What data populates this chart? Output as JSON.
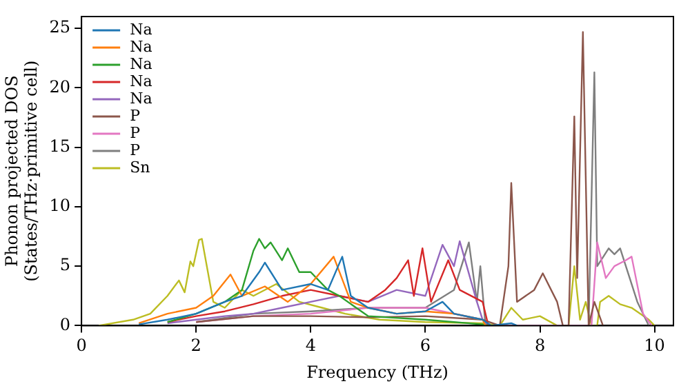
{
  "chart_data": {
    "type": "line",
    "xlabel": "Frequency (THz)",
    "ylabel": "Phonon projected DOS\n(States/THz·primitive cell)",
    "xlim": [
      0,
      10.33
    ],
    "ylim": [
      0,
      26
    ],
    "xticks": [
      0,
      2,
      4,
      6,
      8,
      10
    ],
    "yticks": [
      0,
      5,
      10,
      15,
      20,
      25
    ],
    "grid": false,
    "legend": "top left",
    "marker": "none",
    "line_style": "solid",
    "series": [
      {
        "name": "Na",
        "color": "#1f77b4",
        "x": [
          1,
          1.5,
          2,
          2.5,
          2.8,
          3.1,
          3.2,
          3.5,
          4,
          4.3,
          4.55,
          4.7,
          5,
          5.5,
          6,
          6.3,
          6.5,
          7,
          7.15,
          7.5,
          7.6
        ],
        "values": [
          0.1,
          0.5,
          1,
          2,
          2.5,
          4.5,
          5.3,
          3,
          3.5,
          3,
          5.8,
          2.5,
          1.5,
          1,
          1.2,
          2,
          1,
          0.5,
          0,
          0.2,
          0
        ]
      },
      {
        "name": "Na",
        "color": "#ff7f0e",
        "x": [
          1,
          1.5,
          2,
          2.3,
          2.6,
          2.8,
          3.2,
          3.6,
          4,
          4.4,
          4.7,
          5,
          5.5,
          6,
          6.5,
          7,
          7.05
        ],
        "values": [
          0.2,
          1,
          1.5,
          2.5,
          4.3,
          2.5,
          3.3,
          2,
          3.5,
          5.8,
          2,
          1.5,
          1,
          1.2,
          1,
          0.5,
          0
        ]
      },
      {
        "name": "Na",
        "color": "#2ca02c",
        "x": [
          1.5,
          2,
          2.5,
          2.8,
          3,
          3.1,
          3.2,
          3.3,
          3.5,
          3.6,
          3.8,
          4,
          4.3,
          4.5,
          5,
          6,
          7,
          7.1
        ],
        "values": [
          0.3,
          1,
          2,
          3,
          6.3,
          7.3,
          6.5,
          7,
          5.5,
          6.5,
          4.5,
          4.5,
          3,
          2.5,
          0.8,
          0.5,
          0.1,
          0
        ]
      },
      {
        "name": "Na",
        "color": "#d62728",
        "x": [
          1.5,
          2,
          2.5,
          3,
          3.5,
          4,
          4.5,
          5,
          5.3,
          5.5,
          5.7,
          5.8,
          5.95,
          6.1,
          6.4,
          6.6,
          7,
          7.1
        ],
        "values": [
          0.3,
          0.8,
          1.2,
          1.8,
          2.5,
          3,
          2.5,
          2,
          3,
          4,
          5.5,
          2.5,
          6.5,
          2,
          5.5,
          3,
          2,
          0
        ]
      },
      {
        "name": "Na",
        "color": "#9467bd",
        "x": [
          1.5,
          2,
          2.5,
          3,
          3.5,
          4,
          4.5,
          5,
          5.5,
          6,
          6.3,
          6.5,
          6.6,
          6.9,
          7,
          7.1
        ],
        "values": [
          0.2,
          0.5,
          0.8,
          1,
          1.5,
          2,
          2.5,
          2,
          3,
          2.5,
          6.8,
          5,
          7.1,
          2,
          0.5,
          0
        ]
      },
      {
        "name": "P",
        "color": "#8c564b",
        "x": [
          2,
          3,
          4,
          5,
          6,
          7,
          7.3,
          7.45,
          7.5,
          7.6,
          7.9,
          8.05,
          8.3,
          8.4,
          8.5,
          8.6,
          8.65,
          8.75,
          8.85,
          8.95,
          9.1
        ],
        "values": [
          0.3,
          0.8,
          0.8,
          0.7,
          0.8,
          0.5,
          0,
          5,
          12,
          2,
          3,
          4.4,
          2,
          0,
          0,
          17.6,
          4,
          24.7,
          0,
          2,
          0
        ]
      },
      {
        "name": "P",
        "color": "#e377c2",
        "x": [
          2,
          3,
          4,
          5,
          6,
          7,
          7.1,
          8.9,
          9.0,
          9.15,
          9.3,
          9.5,
          9.6,
          9.8,
          9.95
        ],
        "values": [
          0.3,
          0.8,
          1,
          1.5,
          1.5,
          0.5,
          0,
          0,
          7,
          4,
          5,
          5.5,
          5.8,
          1,
          0
        ]
      },
      {
        "name": "P",
        "color": "#7f7f7f",
        "x": [
          2,
          3,
          4,
          5,
          6,
          6.5,
          6.76,
          6.9,
          6.96,
          7.05,
          7.2,
          8.85,
          8.95,
          9.0,
          9.2,
          9.3,
          9.4,
          9.7,
          9.9
        ],
        "values": [
          0.3,
          1,
          1.2,
          1.5,
          1.5,
          3,
          7,
          2,
          5,
          0,
          0,
          0,
          21.3,
          5,
          6.5,
          6,
          6.5,
          2,
          0
        ]
      },
      {
        "name": "Sn",
        "color": "#bcbd22",
        "x": [
          0.3,
          0.9,
          1.2,
          1.5,
          1.7,
          1.8,
          1.9,
          1.95,
          2.05,
          2.1,
          2.3,
          2.5,
          2.8,
          3,
          3.4,
          3.8,
          4.2,
          4.6,
          5.2,
          6,
          7,
          7.3,
          7.5,
          7.7,
          8,
          8.3,
          8.5,
          8.6,
          8.7,
          8.8,
          8.9,
          9.0,
          9.05,
          9.2,
          9.4,
          9.6,
          9.9,
          10
        ],
        "values": [
          0,
          0.5,
          1,
          2.5,
          3.8,
          2.8,
          5.4,
          5,
          7.2,
          7.3,
          2,
          1.5,
          3,
          2.5,
          3.5,
          2,
          1.5,
          1,
          0.5,
          0.3,
          0.2,
          0,
          1.5,
          0.5,
          0.8,
          0,
          0,
          5,
          0.5,
          2,
          0,
          0,
          2,
          2.5,
          1.8,
          1.5,
          0.5,
          0
        ]
      }
    ]
  }
}
